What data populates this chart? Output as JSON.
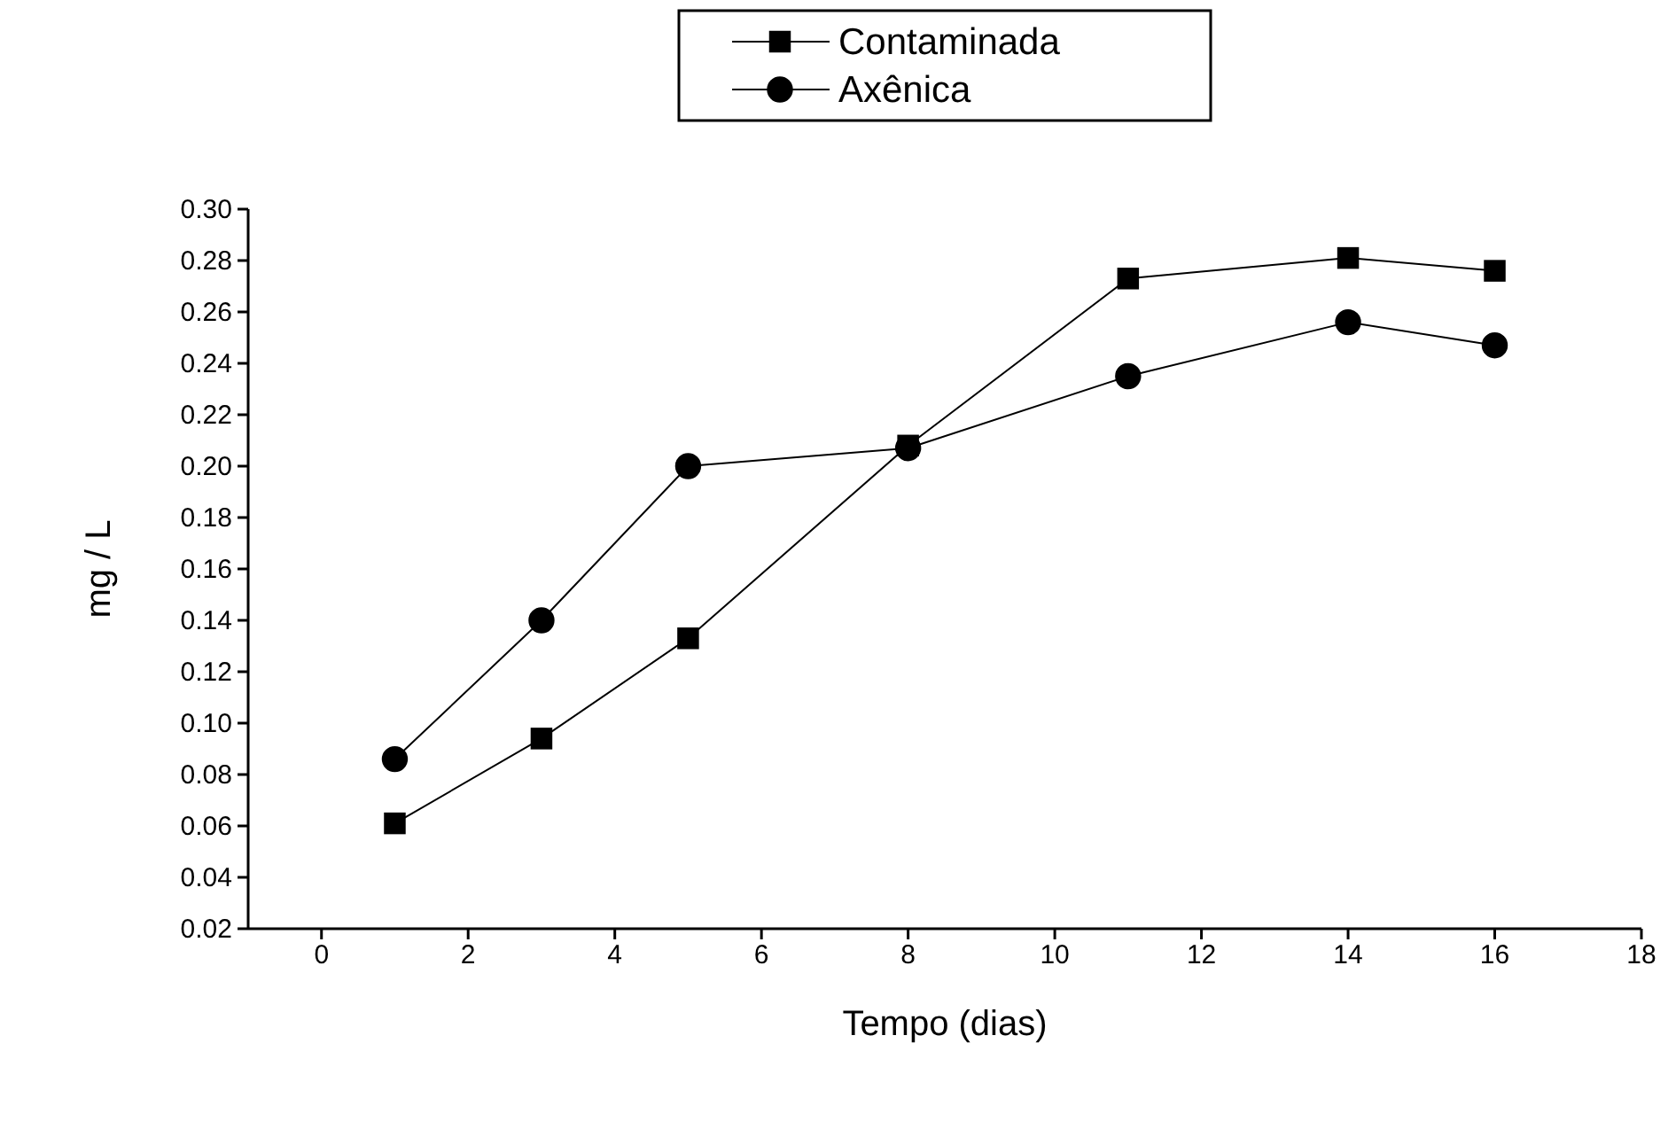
{
  "chart_data": {
    "type": "line",
    "xlabel": "Tempo (dias)",
    "ylabel": "mg / L",
    "x": [
      1,
      3,
      5,
      8,
      11,
      14,
      16
    ],
    "series": [
      {
        "name": "Contaminada",
        "color": "#000000",
        "marker": "square",
        "values": [
          0.061,
          0.094,
          0.133,
          0.208,
          0.273,
          0.281,
          0.276
        ]
      },
      {
        "name": "Axênica",
        "color": "#000000",
        "marker": "circle",
        "values": [
          0.086,
          0.14,
          0.2,
          0.207,
          0.235,
          0.256,
          0.247
        ]
      }
    ],
    "xlim": [
      -1,
      18
    ],
    "xticks": [
      0,
      2,
      4,
      6,
      8,
      10,
      12,
      14,
      16,
      18
    ],
    "ylim": [
      0.02,
      0.3
    ],
    "yticks": [
      {
        "value": 0.02,
        "label": "0.02"
      },
      {
        "value": 0.04,
        "label": "0.04"
      },
      {
        "value": 0.06,
        "label": "0.06"
      },
      {
        "value": 0.08,
        "label": "0.08"
      },
      {
        "value": 0.1,
        "label": "0.10"
      },
      {
        "value": 0.12,
        "label": "0.12"
      },
      {
        "value": 0.14,
        "label": "0.14"
      },
      {
        "value": 0.16,
        "label": "0.16"
      },
      {
        "value": 0.18,
        "label": "0.18"
      },
      {
        "value": 0.2,
        "label": "0.20"
      },
      {
        "value": 0.22,
        "label": "0.22"
      },
      {
        "value": 0.24,
        "label": "0.24"
      },
      {
        "value": 0.26,
        "label": "0.26"
      },
      {
        "value": 0.28,
        "label": "0.28"
      },
      {
        "value": 0.3,
        "label": "0.30"
      }
    ],
    "grid": false,
    "legend": "top",
    "line_style": "solid"
  }
}
